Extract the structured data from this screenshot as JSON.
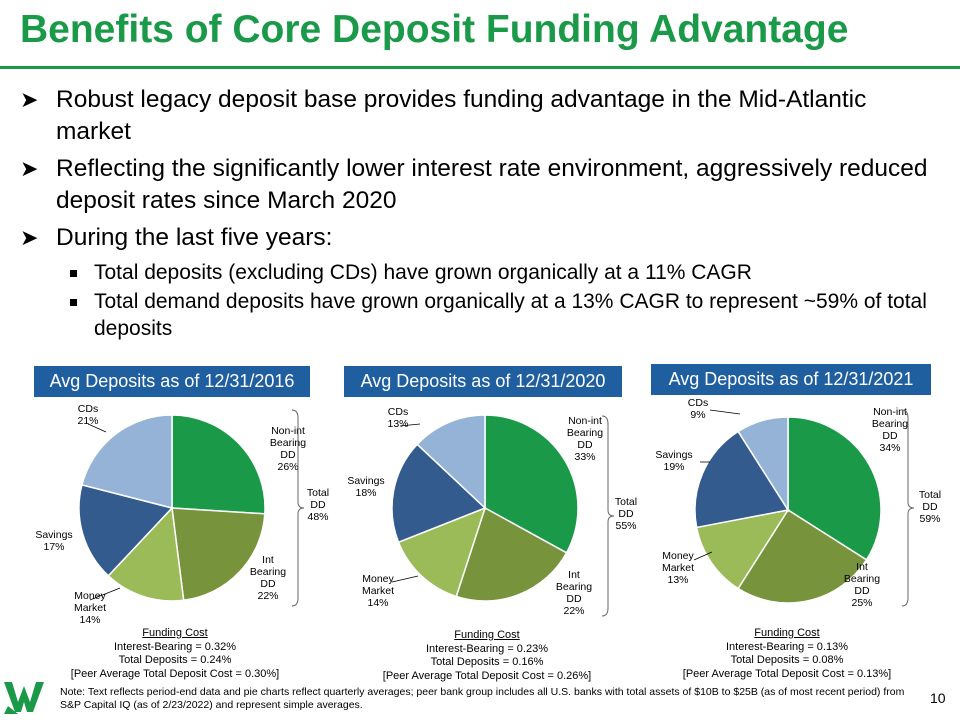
{
  "title": "Benefits of Core Deposit Funding Advantage",
  "bullets": [
    {
      "level": 1,
      "text": "Robust legacy deposit base provides funding advantage in the Mid-Atlantic market"
    },
    {
      "level": 1,
      "text": "Reflecting the significantly lower interest rate environment, aggressively reduced deposit rates since March 2020"
    },
    {
      "level": 1,
      "text": "During the last five years:"
    },
    {
      "level": 2,
      "text": "Total deposits (excluding CDs) have grown organically at a 11% CAGR"
    },
    {
      "level": 2,
      "text": "Total demand deposits have grown organically at a 13% CAGR to represent ~59% of total deposits"
    }
  ],
  "colors": {
    "title": "#1a9a48",
    "header_bg": "#1f5fa0",
    "nonint": "#1a9a48",
    "int": "#77933c",
    "money": "#9bbb59",
    "savings": "#335b8e",
    "cds": "#95b3d7"
  },
  "chart_data": [
    {
      "type": "pie",
      "title": "Avg Deposits as of 12/31/2016",
      "slices": [
        {
          "name": "Non-int Bearing DD",
          "value": 26,
          "label": "26%"
        },
        {
          "name": "Int Bearing DD",
          "value": 22,
          "label": "22%"
        },
        {
          "name": "Money Market",
          "value": 14,
          "label": "14%"
        },
        {
          "name": "Savings",
          "value": 17,
          "label": "17%"
        },
        {
          "name": "CDs",
          "value": 21,
          "label": "21%"
        }
      ],
      "total_dd": {
        "line1": "Total",
        "line2": "DD",
        "line3": "48%"
      },
      "funding_cost": {
        "title": "Funding Cost",
        "l1": "Interest-Bearing = 0.32%",
        "l2": "Total Deposits = 0.24%",
        "l3": "[Peer Average Total Deposit Cost = 0.30%]"
      }
    },
    {
      "type": "pie",
      "title": "Avg Deposits as of 12/31/2020",
      "slices": [
        {
          "name": "Non-int Bearing DD",
          "value": 33,
          "label": "33%"
        },
        {
          "name": "Int Bearing DD",
          "value": 22,
          "label": "22%"
        },
        {
          "name": "Money Market",
          "value": 14,
          "label": "14%"
        },
        {
          "name": "Savings",
          "value": 18,
          "label": "18%"
        },
        {
          "name": "CDs",
          "value": 13,
          "label": "13%"
        }
      ],
      "total_dd": {
        "line1": "Total",
        "line2": "DD",
        "line3": "55%"
      },
      "funding_cost": {
        "title": "Funding Cost",
        "l1": "Interest-Bearing = 0.23%",
        "l2": "Total Deposits = 0.16%",
        "l3": "[Peer Average Total Deposit Cost = 0.26%]"
      }
    },
    {
      "type": "pie",
      "title": "Avg Deposits as of 12/31/2021",
      "slices": [
        {
          "name": "Non-int Bearing DD",
          "value": 34,
          "label": "34%"
        },
        {
          "name": "Int Bearing DD",
          "value": 25,
          "label": "25%"
        },
        {
          "name": "Money Market",
          "value": 13,
          "label": "13%"
        },
        {
          "name": "Savings",
          "value": 19,
          "label": "19%"
        },
        {
          "name": "CDs",
          "value": 9,
          "label": "9%"
        }
      ],
      "total_dd": {
        "line1": "Total",
        "line2": "DD",
        "line3": "59%"
      },
      "funding_cost": {
        "title": "Funding Cost",
        "l1": "Interest-Bearing = 0.13%",
        "l2": "Total Deposits = 0.08%",
        "l3": "[Peer Average Total Deposit Cost = 0.13%]"
      }
    }
  ],
  "note": "Note: Text reflects period-end data and pie charts reflect quarterly averages; peer bank group includes all U.S. banks with total assets of $10B to $25B (as of most recent period) from S&P Capital IQ (as of 2/23/2022) and represent simple averages.",
  "page_number": "10"
}
